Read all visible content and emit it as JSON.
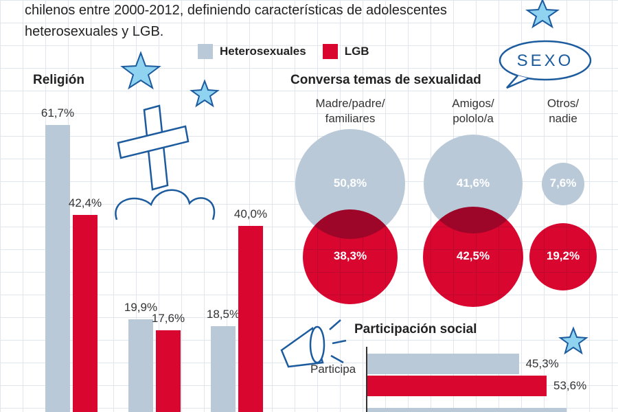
{
  "intro": {
    "line1": "chilenos entre 2000-2012, definiendo características de adolescentes",
    "line2": "heterosexuales y LGB."
  },
  "legend": {
    "items": [
      {
        "label": "Heterosexuales",
        "color": "#b9c9d8"
      },
      {
        "label": "LGB",
        "color": "#d9072f"
      }
    ]
  },
  "badge": "SEXO",
  "colors": {
    "hetero": "#b9c9d8",
    "lgb": "#d9072f",
    "overlap": "#a50628",
    "ink": "#1c5b9e"
  },
  "chart_data": [
    {
      "type": "bar",
      "title": "Religión",
      "series": [
        {
          "name": "Heterosexuales",
          "values": [
            61.7,
            19.9,
            18.5
          ]
        },
        {
          "name": "LGB",
          "values": [
            42.4,
            17.6,
            40.0
          ]
        }
      ],
      "labels": [
        [
          "61,7%",
          "42,4%"
        ],
        [
          "19,9%",
          "17,6%"
        ],
        [
          "18,5%",
          "40,0%"
        ]
      ],
      "ylim": [
        0,
        70
      ]
    },
    {
      "type": "bubble",
      "title": "Conversa temas de sexualidad",
      "categories": [
        [
          "Madre/padre/",
          "familiares"
        ],
        [
          "Amigos/",
          "pololo/a"
        ],
        [
          "Otros/",
          "nadie"
        ]
      ],
      "series": [
        {
          "name": "Heterosexuales",
          "values": [
            50.8,
            41.6,
            7.6
          ],
          "labels": [
            "50,8%",
            "41,6%",
            "7,6%"
          ]
        },
        {
          "name": "LGB",
          "values": [
            38.3,
            42.5,
            19.2
          ],
          "labels": [
            "38,3%",
            "42,5%",
            "19,2%"
          ]
        }
      ]
    },
    {
      "type": "bar",
      "orientation": "horizontal",
      "title": "Participación social",
      "categories": [
        "Participa"
      ],
      "series": [
        {
          "name": "Heterosexuales",
          "values": [
            45.3
          ],
          "labels": [
            "45,3%"
          ]
        },
        {
          "name": "LGB",
          "values": [
            53.6
          ],
          "labels": [
            "53,6%"
          ]
        }
      ]
    }
  ]
}
